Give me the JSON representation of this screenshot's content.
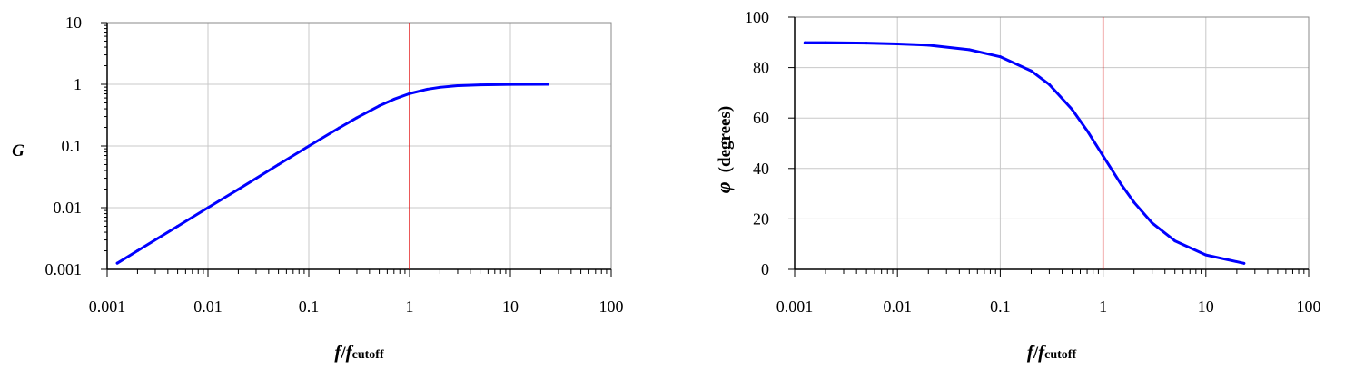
{
  "chart_data": [
    {
      "type": "line",
      "title": "",
      "x_scale": "log",
      "y_scale": "log",
      "xlim": [
        0.001,
        100
      ],
      "ylim": [
        0.001,
        10
      ],
      "grid": true,
      "x_ticks": [
        "0.001",
        "0.01",
        "0.1",
        "1",
        "10",
        "100"
      ],
      "y_ticks": [
        "0.001",
        "0.01",
        "0.1",
        "1",
        "10"
      ],
      "xlabel": {
        "main": "f",
        "slash": "/",
        "main2": "f",
        "sub": "cutoff"
      },
      "ylabel": "G",
      "marker_line_x": 1,
      "colors": {
        "curve": "#0000ff",
        "marker": "#e00000",
        "grid": "#c8c8c8"
      },
      "series": [
        {
          "x": [
            0.00126,
            0.002,
            0.005,
            0.01,
            0.02,
            0.05,
            0.1,
            0.2,
            0.3,
            0.5,
            0.7,
            1,
            1.5,
            2,
            3,
            5,
            10,
            23.5
          ],
          "values": [
            0.00126,
            0.002,
            0.005,
            0.01,
            0.0198,
            0.0499,
            0.0995,
            0.196,
            0.287,
            0.447,
            0.573,
            0.707,
            0.832,
            0.894,
            0.949,
            0.981,
            0.995,
            0.999
          ]
        }
      ]
    },
    {
      "type": "line",
      "title": "",
      "x_scale": "log",
      "y_scale": "linear",
      "xlim": [
        0.001,
        100
      ],
      "ylim": [
        0,
        100
      ],
      "grid": true,
      "x_ticks": [
        "0.001",
        "0.01",
        "0.1",
        "1",
        "10",
        "100"
      ],
      "y_ticks": [
        "0",
        "20",
        "40",
        "60",
        "80",
        "100"
      ],
      "xlabel": {
        "main": "f",
        "slash": "/",
        "main2": "f",
        "sub": "cutoff"
      },
      "ylabel": {
        "symbol": "φ",
        "text": "(degrees)"
      },
      "marker_line_x": 1,
      "colors": {
        "curve": "#0000ff",
        "marker": "#e00000",
        "grid": "#c8c8c8"
      },
      "series": [
        {
          "x": [
            0.00126,
            0.002,
            0.005,
            0.01,
            0.02,
            0.05,
            0.1,
            0.2,
            0.3,
            0.5,
            0.7,
            1,
            1.5,
            2,
            3,
            5,
            10,
            23.5
          ],
          "values": [
            89.9,
            89.9,
            89.7,
            89.4,
            88.9,
            87.1,
            84.3,
            78.7,
            73.3,
            63.4,
            55.0,
            45.0,
            33.7,
            26.6,
            18.4,
            11.3,
            5.7,
            2.4
          ]
        }
      ]
    }
  ]
}
